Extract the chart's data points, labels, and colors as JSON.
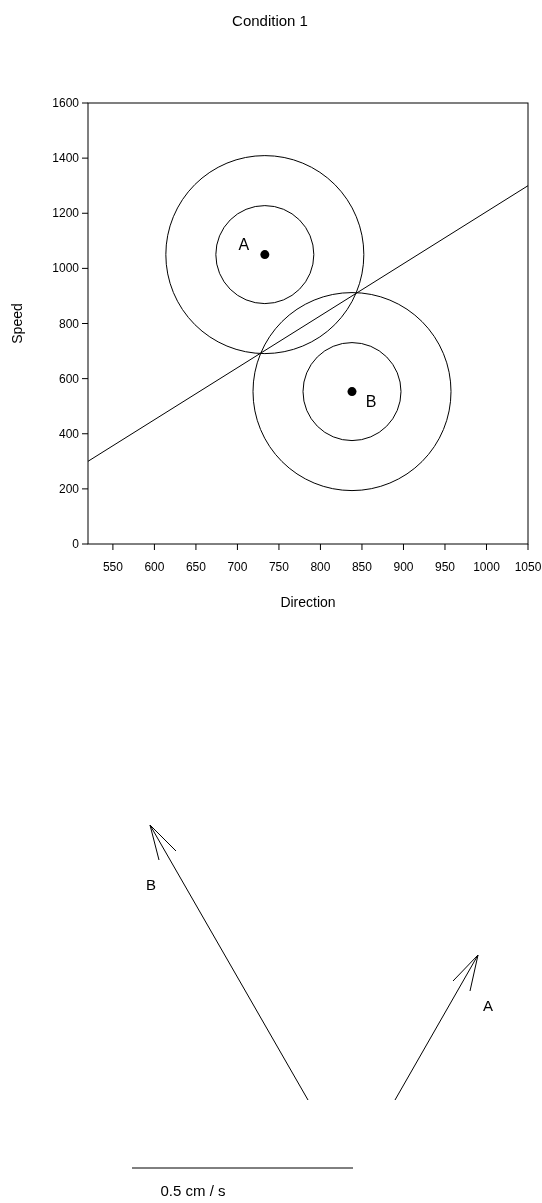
{
  "chart_data": {
    "type": "scatter",
    "title": "Condition 1",
    "xlabel": "Direction",
    "ylabel": "Speed",
    "xlim": [
      520,
      1050
    ],
    "ylim": [
      0,
      1600
    ],
    "xticks": [
      550,
      600,
      650,
      700,
      750,
      800,
      850,
      900,
      950,
      1000,
      1050
    ],
    "yticks": [
      0,
      200,
      400,
      600,
      800,
      1000,
      1200,
      1400,
      1600
    ],
    "series": [
      {
        "type": "line",
        "color": "#000000",
        "x": [
          520,
          1050
        ],
        "values": [
          300,
          1300
        ]
      },
      {
        "type": "scatter",
        "color": "#000000",
        "x": [
          733,
          838
        ],
        "values": [
          1050,
          553
        ]
      }
    ],
    "annotations": [
      {
        "text": "A",
        "x": 733,
        "y": 1050
      },
      {
        "text": "B",
        "x": 838,
        "y": 553
      },
      "B",
      "A",
      "0.5 cm / s"
    ]
  }
}
